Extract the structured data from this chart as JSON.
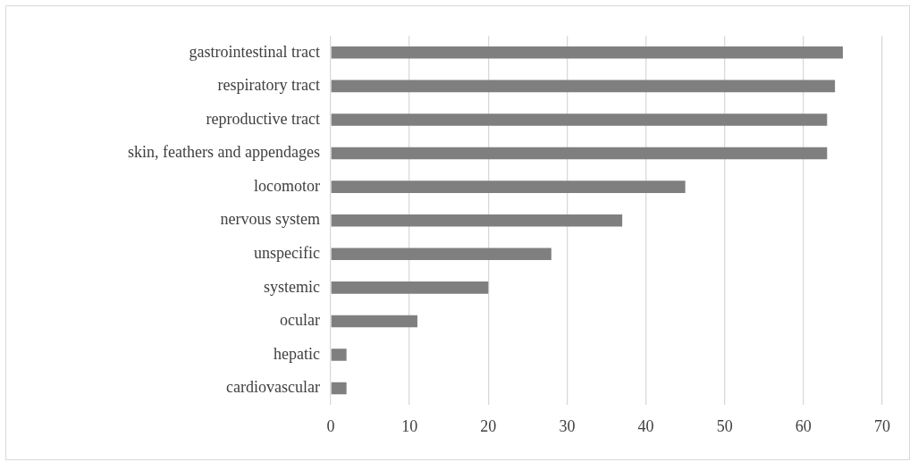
{
  "chart_data": {
    "type": "bar",
    "orientation": "horizontal",
    "categories": [
      "gastrointestinal tract",
      "respiratory tract",
      "reproductive tract",
      "skin, feathers and appendages",
      "locomotor",
      "nervous system",
      "unspecific",
      "systemic",
      "ocular",
      "hepatic",
      "cardiovascular"
    ],
    "values": [
      65,
      64,
      63,
      63,
      45,
      37,
      28,
      20,
      11,
      2,
      2
    ],
    "color": "#7f7f7f",
    "xlim": [
      0,
      70
    ],
    "xticks": [
      0,
      10,
      20,
      30,
      40,
      50,
      60,
      70
    ],
    "grid": "x"
  }
}
